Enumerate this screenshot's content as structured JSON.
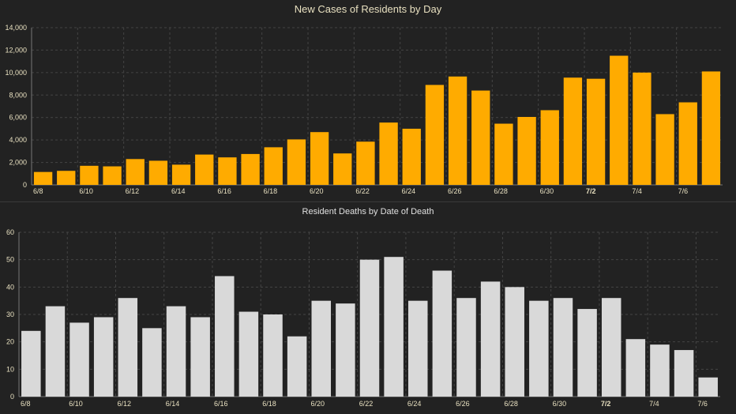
{
  "chart_data": [
    {
      "type": "bar",
      "title": "New Cases of Residents by Day",
      "xlabel": "",
      "ylabel": "",
      "ylim": [
        0,
        14000
      ],
      "yticks": [
        "0",
        "2,000",
        "4,000",
        "6,000",
        "8,000",
        "10,000",
        "12,000",
        "14,000"
      ],
      "ytick_values": [
        0,
        2000,
        4000,
        6000,
        8000,
        10000,
        12000,
        14000
      ],
      "xtick_labels": [
        "6/8",
        "6/10",
        "6/12",
        "6/14",
        "6/16",
        "6/18",
        "6/20",
        "6/22",
        "6/24",
        "6/26",
        "6/28",
        "6/30",
        "7/2",
        "7/4",
        "7/6"
      ],
      "categories": [
        "6/8",
        "6/9",
        "6/10",
        "6/11",
        "6/12",
        "6/13",
        "6/14",
        "6/15",
        "6/16",
        "6/17",
        "6/18",
        "6/19",
        "6/20",
        "6/21",
        "6/22",
        "6/23",
        "6/24",
        "6/25",
        "6/26",
        "6/27",
        "6/28",
        "6/29",
        "6/30",
        "7/1",
        "7/2",
        "7/3",
        "7/4",
        "7/5",
        "7/6",
        "7/7"
      ],
      "values": [
        1150,
        1250,
        1700,
        1650,
        2300,
        2150,
        1800,
        2700,
        2450,
        2750,
        3350,
        4050,
        4700,
        2800,
        3850,
        5550,
        5000,
        8900,
        9650,
        8400,
        5450,
        6050,
        6650,
        9550,
        9450,
        11500,
        10000,
        6300,
        7350,
        10100
      ],
      "bar_color": "#ffab00",
      "grid": true
    },
    {
      "type": "bar",
      "title": "Resident Deaths by Date of Death",
      "xlabel": "",
      "ylabel": "",
      "ylim": [
        0,
        60
      ],
      "yticks": [
        "0",
        "10",
        "20",
        "30",
        "40",
        "50",
        "60"
      ],
      "ytick_values": [
        0,
        10,
        20,
        30,
        40,
        50,
        60
      ],
      "xtick_labels": [
        "6/8",
        "6/10",
        "6/12",
        "6/14",
        "6/16",
        "6/18",
        "6/20",
        "6/22",
        "6/24",
        "6/26",
        "6/28",
        "6/30",
        "7/2",
        "7/4",
        "7/6"
      ],
      "categories": [
        "6/8",
        "6/9",
        "6/10",
        "6/11",
        "6/12",
        "6/13",
        "6/14",
        "6/15",
        "6/16",
        "6/17",
        "6/18",
        "6/19",
        "6/20",
        "6/21",
        "6/22",
        "6/23",
        "6/24",
        "6/25",
        "6/26",
        "6/27",
        "6/28",
        "6/29",
        "6/30",
        "7/1",
        "7/2",
        "7/3",
        "7/4",
        "7/5",
        "7/6"
      ],
      "values": [
        24,
        33,
        27,
        29,
        36,
        25,
        33,
        29,
        44,
        31,
        30,
        22,
        35,
        34,
        50,
        51,
        35,
        46,
        36,
        42,
        40,
        35,
        36,
        32,
        36,
        21,
        19,
        17,
        7
      ],
      "bar_color": "#d9d9d9",
      "grid": true
    }
  ],
  "colors": {
    "background": "#222222",
    "axis_text": "#e8e0c0",
    "grid": "#444444"
  }
}
